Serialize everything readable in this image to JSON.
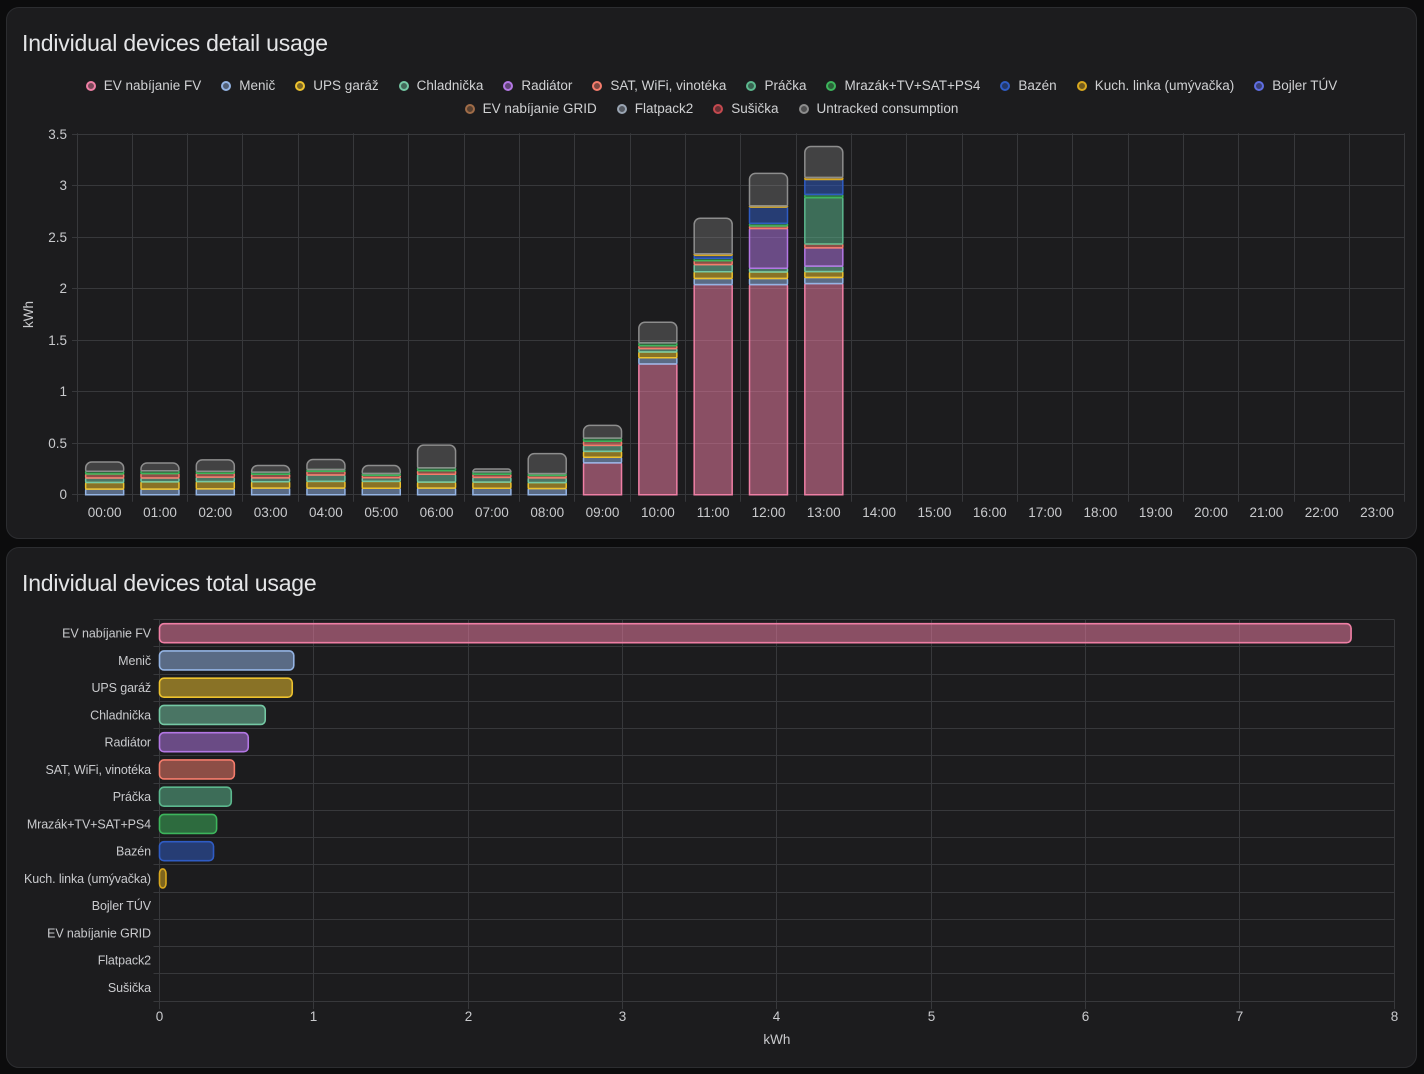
{
  "app": "Energy dashboard",
  "panels": {
    "detail": {
      "title": "Individual devices detail usage",
      "y_axis_label": "kWh",
      "y_ticks": [
        "0",
        "0.5",
        "1",
        "1.5",
        "2",
        "2.5",
        "3",
        "3.5"
      ],
      "x_ticks": [
        "00:00",
        "01:00",
        "02:00",
        "03:00",
        "04:00",
        "05:00",
        "06:00",
        "07:00",
        "08:00",
        "09:00",
        "10:00",
        "11:00",
        "12:00",
        "13:00",
        "14:00",
        "15:00",
        "16:00",
        "17:00",
        "18:00",
        "19:00",
        "20:00",
        "21:00",
        "22:00",
        "23:00"
      ]
    },
    "total": {
      "title": "Individual devices total usage",
      "x_axis_label": "kWh",
      "x_ticks": [
        "0",
        "1",
        "2",
        "3",
        "4",
        "5",
        "6",
        "7",
        "8"
      ]
    }
  },
  "legend": {
    "row_split": 11,
    "items": [
      "EV nabíjanie FV",
      "Menič",
      "UPS garáž",
      "Chladnička",
      "Radiátor",
      "SAT, WiFi, vinotéka",
      "Práčka",
      "Mrazák+TV+SAT+PS4",
      "Bazén",
      "Kuch. linka (umývačka)",
      "Bojler TÚV",
      "EV nabíjanie GRID",
      "Flatpack2",
      "Sušička",
      "Untracked consumption"
    ]
  },
  "colors": {
    "page_background": "#0c0c0d",
    "panel_background": "#1c1c1e",
    "panel_border": "#2c2d30",
    "grid_line": "#37383b",
    "tick_label": "#c9cacd",
    "title_text": "#e4e5e7",
    "legend_text": "#d0d1d3"
  },
  "chart_data": [
    {
      "type": "bar",
      "stacked": true,
      "orientation": "vertical",
      "title": "Individual devices detail usage",
      "xlabel": "",
      "ylabel": "kWh",
      "ylim": [
        0,
        3.5
      ],
      "y_tick_step": 0.5,
      "grid": true,
      "legend_position": "top-center",
      "categories": [
        "00:00",
        "01:00",
        "02:00",
        "03:00",
        "04:00",
        "05:00",
        "06:00",
        "07:00",
        "08:00",
        "09:00",
        "10:00",
        "11:00",
        "12:00",
        "13:00",
        "14:00",
        "15:00",
        "16:00",
        "17:00",
        "18:00",
        "19:00",
        "20:00",
        "21:00",
        "22:00",
        "23:00"
      ],
      "series": [
        {
          "name": "EV nabíjanie FV",
          "color": "#ef7fa5",
          "values": [
            0,
            0,
            0,
            0,
            0,
            0,
            0,
            0,
            0,
            0.31,
            1.27,
            2.04,
            2.04,
            2.05,
            0,
            0,
            0,
            0,
            0,
            0,
            0,
            0,
            0,
            0
          ]
        },
        {
          "name": "Menič",
          "color": "#94b4e4",
          "values": [
            0.055,
            0.055,
            0.057,
            0.065,
            0.065,
            0.063,
            0.065,
            0.063,
            0.06,
            0.055,
            0.06,
            0.06,
            0.06,
            0.06,
            0,
            0,
            0,
            0,
            0,
            0,
            0,
            0,
            0,
            0
          ]
        },
        {
          "name": "UPS garáž",
          "color": "#edc22e",
          "values": [
            0.065,
            0.071,
            0.071,
            0.062,
            0.065,
            0.067,
            0.058,
            0.06,
            0.058,
            0.057,
            0.057,
            0.065,
            0.063,
            0.057,
            0,
            0,
            0,
            0,
            0,
            0,
            0,
            0,
            0,
            0
          ]
        },
        {
          "name": "Chladnička",
          "color": "#74c8a4",
          "values": [
            0.043,
            0.037,
            0.043,
            0.037,
            0.062,
            0.035,
            0.076,
            0.046,
            0.046,
            0.058,
            0.032,
            0.07,
            0.037,
            0.053,
            0,
            0,
            0,
            0,
            0,
            0,
            0,
            0,
            0,
            0
          ]
        },
        {
          "name": "Radiátor",
          "color": "#b377e4",
          "values": [
            0,
            0,
            0,
            0,
            0,
            0,
            0,
            0,
            0,
            0,
            0,
            0,
            0.385,
            0.177,
            0,
            0,
            0,
            0,
            0,
            0,
            0,
            0,
            0,
            0
          ]
        },
        {
          "name": "SAT, WiFi, vinotéka",
          "color": "#f57c6c",
          "values": [
            0.039,
            0.043,
            0.037,
            0.035,
            0.035,
            0.023,
            0.035,
            0.03,
            0.023,
            0.04,
            0.028,
            0.037,
            0.025,
            0.038,
            0,
            0,
            0,
            0,
            0,
            0,
            0,
            0,
            0,
            0
          ]
        },
        {
          "name": "Práčka",
          "color": "#5cb88e",
          "values": [
            0,
            0,
            0,
            0,
            0,
            0,
            0,
            0,
            0,
            0,
            0,
            0,
            0,
            0.45,
            0,
            0,
            0,
            0,
            0,
            0,
            0,
            0,
            0,
            0
          ]
        },
        {
          "name": "Mrazák+TV+SAT+PS4",
          "color": "#3db55c",
          "values": [
            0.027,
            0.027,
            0.021,
            0.021,
            0.019,
            0.019,
            0.028,
            0.023,
            0.019,
            0.03,
            0.028,
            0.025,
            0.025,
            0.03,
            0,
            0,
            0,
            0,
            0,
            0,
            0,
            0,
            0,
            0
          ]
        },
        {
          "name": "Bazén",
          "color": "#2f5cc4",
          "values": [
            0,
            0,
            0,
            0,
            0,
            0,
            0,
            0,
            0,
            0,
            0,
            0.028,
            0.158,
            0.146,
            0,
            0,
            0,
            0,
            0,
            0,
            0,
            0,
            0,
            0
          ]
        },
        {
          "name": "Kuch. linka (umývačka)",
          "color": "#d9a81f",
          "values": [
            0,
            0,
            0,
            0,
            0,
            0,
            0,
            0,
            0,
            0,
            0,
            0.015,
            0.012,
            0.02,
            0,
            0,
            0,
            0,
            0,
            0,
            0,
            0,
            0,
            0
          ]
        },
        {
          "name": "Bojler TÚV",
          "color": "#5f6ee3",
          "values": [
            0,
            0,
            0,
            0,
            0,
            0,
            0,
            0,
            0,
            0,
            0,
            0,
            0,
            0,
            0,
            0,
            0,
            0,
            0,
            0,
            0,
            0,
            0,
            0
          ]
        },
        {
          "name": "EV nabíjanie GRID",
          "color": "#a06c48",
          "values": [
            0,
            0,
            0,
            0,
            0,
            0,
            0,
            0,
            0,
            0,
            0,
            0,
            0,
            0,
            0,
            0,
            0,
            0,
            0,
            0,
            0,
            0,
            0,
            0
          ]
        },
        {
          "name": "Flatpack2",
          "color": "#9aa5b3",
          "values": [
            0,
            0,
            0,
            0,
            0,
            0,
            0,
            0,
            0,
            0,
            0,
            0,
            0,
            0,
            0,
            0,
            0,
            0,
            0,
            0,
            0,
            0,
            0,
            0
          ]
        },
        {
          "name": "Sušička",
          "color": "#c4494f",
          "values": [
            0,
            0,
            0,
            0,
            0,
            0,
            0,
            0,
            0,
            0,
            0,
            0,
            0,
            0,
            0,
            0,
            0,
            0,
            0,
            0,
            0,
            0,
            0,
            0
          ]
        },
        {
          "name": "Untracked consumption",
          "color": "#8d8d8d",
          "fill_opacity": 0.34,
          "values": [
            0.089,
            0.076,
            0.11,
            0.065,
            0.097,
            0.077,
            0.22,
            0.028,
            0.194,
            0.124,
            0.2,
            0.345,
            0.316,
            0.3,
            0,
            0,
            0,
            0,
            0,
            0,
            0,
            0,
            0,
            0
          ]
        }
      ]
    },
    {
      "type": "bar",
      "orientation": "horizontal",
      "title": "Individual devices total usage",
      "xlabel": "kWh",
      "ylabel": "",
      "xlim": [
        0,
        8
      ],
      "x_tick_step": 1,
      "grid": true,
      "categories": [
        "EV nabíjanie FV",
        "Menič",
        "UPS garáž",
        "Chladnička",
        "Radiátor",
        "SAT, WiFi, vinotéka",
        "Práčka",
        "Mrazák+TV+SAT+PS4",
        "Bazén",
        "Kuch. linka (umývačka)",
        "Bojler TÚV",
        "EV nabíjanie GRID",
        "Flatpack2",
        "Sušička"
      ],
      "values": [
        7.72,
        0.87,
        0.86,
        0.685,
        0.575,
        0.485,
        0.465,
        0.37,
        0.35,
        0.042,
        0,
        0,
        0,
        0
      ],
      "colors": [
        "#ef7fa5",
        "#94b4e4",
        "#edc22e",
        "#74c8a4",
        "#b377e4",
        "#f57c6c",
        "#5cb88e",
        "#3db55c",
        "#2f5cc4",
        "#d9a81f",
        "#5f6ee3",
        "#a06c48",
        "#9aa5b3",
        "#c4494f"
      ]
    }
  ]
}
